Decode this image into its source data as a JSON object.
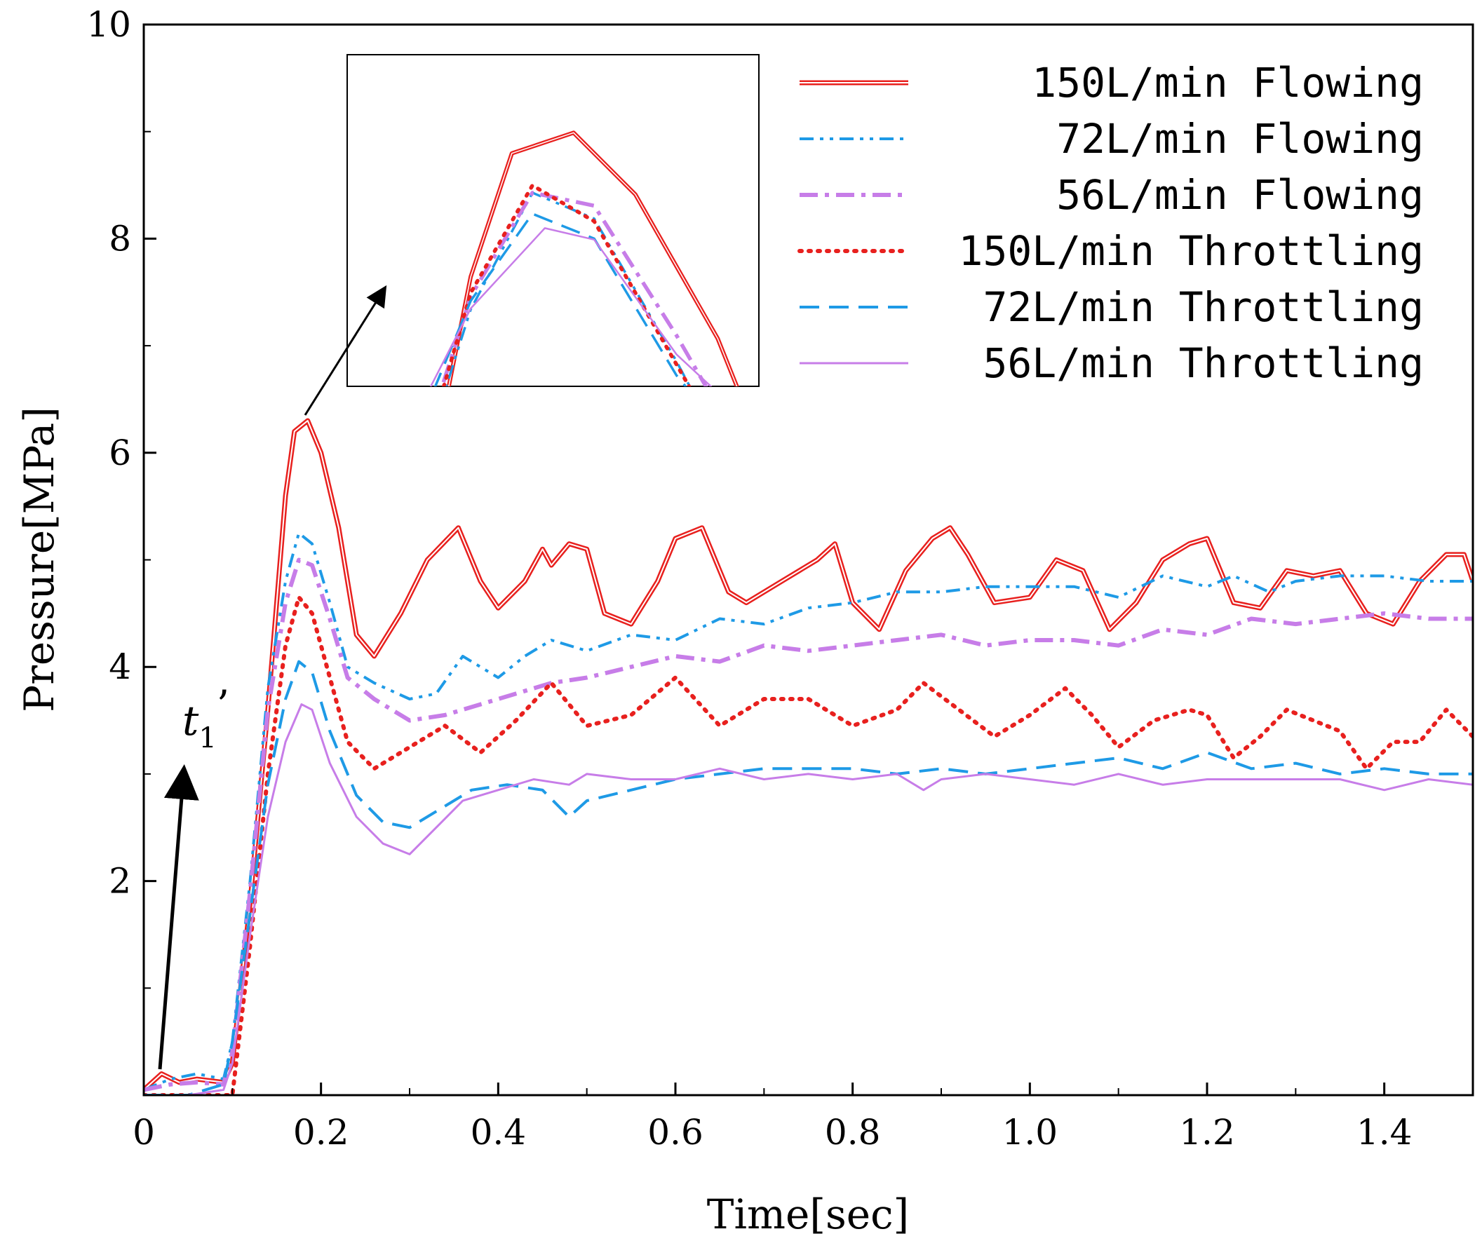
{
  "chart_data": {
    "type": "line",
    "title": "",
    "xlabel": "Time[sec]",
    "ylabel": "Pressure[MPa]",
    "xlim": [
      0,
      1.5
    ],
    "ylim": [
      0,
      10
    ],
    "x_ticks": [
      "0",
      "0.2",
      "0.4",
      "0.6",
      "0.8",
      "1.0",
      "1.2",
      "1.4"
    ],
    "x_tick_values": [
      0,
      0.2,
      0.4,
      0.6,
      0.8,
      1.0,
      1.2,
      1.4
    ],
    "y_ticks": [
      "2",
      "4",
      "6",
      "8",
      "10"
    ],
    "y_tick_values": [
      2,
      4,
      6,
      8,
      10
    ],
    "legend_position": "top-right",
    "annotation": {
      "text": "t",
      "subscript": "1",
      "prime": "’"
    },
    "inset": {
      "description": "zoom of peak region",
      "xlim": [
        0.13,
        0.23
      ],
      "ylim": [
        5.6,
        6.5
      ]
    },
    "series": [
      {
        "name": "150L/min Flowing",
        "color": "#e8201e",
        "style": "double",
        "points": [
          [
            0,
            0.05
          ],
          [
            0.02,
            0.2
          ],
          [
            0.04,
            0.12
          ],
          [
            0.06,
            0.15
          ],
          [
            0.09,
            0.12
          ],
          [
            0.1,
            0.3
          ],
          [
            0.12,
            1.8
          ],
          [
            0.14,
            3.6
          ],
          [
            0.16,
            5.6
          ],
          [
            0.17,
            6.2
          ],
          [
            0.185,
            6.3
          ],
          [
            0.2,
            6.0
          ],
          [
            0.22,
            5.3
          ],
          [
            0.24,
            4.3
          ],
          [
            0.26,
            4.1
          ],
          [
            0.29,
            4.5
          ],
          [
            0.32,
            5.0
          ],
          [
            0.355,
            5.3
          ],
          [
            0.38,
            4.8
          ],
          [
            0.4,
            4.55
          ],
          [
            0.43,
            4.8
          ],
          [
            0.45,
            5.1
          ],
          [
            0.46,
            4.95
          ],
          [
            0.48,
            5.15
          ],
          [
            0.5,
            5.1
          ],
          [
            0.52,
            4.5
          ],
          [
            0.55,
            4.4
          ],
          [
            0.58,
            4.8
          ],
          [
            0.6,
            5.2
          ],
          [
            0.63,
            5.3
          ],
          [
            0.66,
            4.7
          ],
          [
            0.68,
            4.6
          ],
          [
            0.72,
            4.8
          ],
          [
            0.76,
            5.0
          ],
          [
            0.78,
            5.15
          ],
          [
            0.8,
            4.6
          ],
          [
            0.83,
            4.35
          ],
          [
            0.86,
            4.9
          ],
          [
            0.89,
            5.2
          ],
          [
            0.91,
            5.3
          ],
          [
            0.93,
            5.05
          ],
          [
            0.96,
            4.6
          ],
          [
            1.0,
            4.65
          ],
          [
            1.03,
            5.0
          ],
          [
            1.06,
            4.9
          ],
          [
            1.09,
            4.35
          ],
          [
            1.12,
            4.6
          ],
          [
            1.15,
            5.0
          ],
          [
            1.18,
            5.15
          ],
          [
            1.2,
            5.2
          ],
          [
            1.23,
            4.6
          ],
          [
            1.26,
            4.55
          ],
          [
            1.29,
            4.9
          ],
          [
            1.32,
            4.85
          ],
          [
            1.35,
            4.9
          ],
          [
            1.38,
            4.5
          ],
          [
            1.41,
            4.4
          ],
          [
            1.44,
            4.8
          ],
          [
            1.47,
            5.05
          ],
          [
            1.49,
            5.05
          ],
          [
            1.5,
            4.8
          ]
        ]
      },
      {
        "name": "72L/min Flowing",
        "color": "#1e9ae6",
        "style": "dash-dot-dot",
        "points": [
          [
            0,
            0.05
          ],
          [
            0.03,
            0.15
          ],
          [
            0.06,
            0.2
          ],
          [
            0.09,
            0.15
          ],
          [
            0.1,
            0.5
          ],
          [
            0.12,
            2.0
          ],
          [
            0.14,
            3.8
          ],
          [
            0.16,
            4.8
          ],
          [
            0.175,
            5.25
          ],
          [
            0.19,
            5.15
          ],
          [
            0.21,
            4.6
          ],
          [
            0.23,
            4.0
          ],
          [
            0.26,
            3.85
          ],
          [
            0.3,
            3.7
          ],
          [
            0.33,
            3.75
          ],
          [
            0.36,
            4.1
          ],
          [
            0.4,
            3.9
          ],
          [
            0.43,
            4.1
          ],
          [
            0.46,
            4.25
          ],
          [
            0.5,
            4.15
          ],
          [
            0.55,
            4.3
          ],
          [
            0.6,
            4.25
          ],
          [
            0.65,
            4.45
          ],
          [
            0.7,
            4.4
          ],
          [
            0.75,
            4.55
          ],
          [
            0.8,
            4.6
          ],
          [
            0.85,
            4.7
          ],
          [
            0.9,
            4.7
          ],
          [
            0.95,
            4.75
          ],
          [
            1.0,
            4.75
          ],
          [
            1.05,
            4.75
          ],
          [
            1.1,
            4.65
          ],
          [
            1.15,
            4.85
          ],
          [
            1.2,
            4.75
          ],
          [
            1.23,
            4.85
          ],
          [
            1.27,
            4.7
          ],
          [
            1.3,
            4.8
          ],
          [
            1.35,
            4.85
          ],
          [
            1.4,
            4.85
          ],
          [
            1.45,
            4.8
          ],
          [
            1.5,
            4.8
          ]
        ]
      },
      {
        "name": "56L/min Flowing",
        "color": "#c77de8",
        "style": "dash-dot",
        "points": [
          [
            0,
            0.05
          ],
          [
            0.03,
            0.1
          ],
          [
            0.06,
            0.12
          ],
          [
            0.09,
            0.1
          ],
          [
            0.1,
            0.4
          ],
          [
            0.12,
            1.9
          ],
          [
            0.14,
            3.6
          ],
          [
            0.16,
            4.6
          ],
          [
            0.175,
            5.0
          ],
          [
            0.19,
            4.95
          ],
          [
            0.21,
            4.45
          ],
          [
            0.23,
            3.9
          ],
          [
            0.26,
            3.7
          ],
          [
            0.3,
            3.5
          ],
          [
            0.34,
            3.55
          ],
          [
            0.38,
            3.65
          ],
          [
            0.42,
            3.75
          ],
          [
            0.46,
            3.85
          ],
          [
            0.5,
            3.9
          ],
          [
            0.55,
            4.0
          ],
          [
            0.6,
            4.1
          ],
          [
            0.65,
            4.05
          ],
          [
            0.7,
            4.2
          ],
          [
            0.75,
            4.15
          ],
          [
            0.8,
            4.2
          ],
          [
            0.85,
            4.25
          ],
          [
            0.9,
            4.3
          ],
          [
            0.95,
            4.2
          ],
          [
            1.0,
            4.25
          ],
          [
            1.05,
            4.25
          ],
          [
            1.1,
            4.2
          ],
          [
            1.15,
            4.35
          ],
          [
            1.2,
            4.3
          ],
          [
            1.25,
            4.45
          ],
          [
            1.3,
            4.4
          ],
          [
            1.35,
            4.45
          ],
          [
            1.4,
            4.5
          ],
          [
            1.45,
            4.45
          ],
          [
            1.5,
            4.45
          ]
        ]
      },
      {
        "name": "150L/min Throttling",
        "color": "#e8201e",
        "style": "dotted",
        "points": [
          [
            0,
            0.0
          ],
          [
            0.08,
            0.0
          ],
          [
            0.1,
            0.0
          ],
          [
            0.12,
            1.4
          ],
          [
            0.14,
            3.0
          ],
          [
            0.16,
            4.2
          ],
          [
            0.175,
            4.65
          ],
          [
            0.19,
            4.5
          ],
          [
            0.21,
            3.9
          ],
          [
            0.23,
            3.3
          ],
          [
            0.26,
            3.05
          ],
          [
            0.3,
            3.25
          ],
          [
            0.34,
            3.45
          ],
          [
            0.38,
            3.2
          ],
          [
            0.42,
            3.5
          ],
          [
            0.46,
            3.85
          ],
          [
            0.5,
            3.45
          ],
          [
            0.55,
            3.55
          ],
          [
            0.6,
            3.9
          ],
          [
            0.65,
            3.45
          ],
          [
            0.7,
            3.7
          ],
          [
            0.75,
            3.7
          ],
          [
            0.8,
            3.45
          ],
          [
            0.85,
            3.6
          ],
          [
            0.88,
            3.85
          ],
          [
            0.92,
            3.6
          ],
          [
            0.96,
            3.35
          ],
          [
            1.0,
            3.55
          ],
          [
            1.04,
            3.8
          ],
          [
            1.07,
            3.55
          ],
          [
            1.1,
            3.25
          ],
          [
            1.14,
            3.5
          ],
          [
            1.18,
            3.6
          ],
          [
            1.2,
            3.55
          ],
          [
            1.23,
            3.15
          ],
          [
            1.26,
            3.35
          ],
          [
            1.29,
            3.6
          ],
          [
            1.32,
            3.5
          ],
          [
            1.35,
            3.4
          ],
          [
            1.38,
            3.05
          ],
          [
            1.41,
            3.3
          ],
          [
            1.44,
            3.3
          ],
          [
            1.47,
            3.6
          ],
          [
            1.5,
            3.35
          ]
        ]
      },
      {
        "name": "72L/min Throttling",
        "color": "#1e9ae6",
        "style": "dashed",
        "points": [
          [
            0,
            0.0
          ],
          [
            0.05,
            0.0
          ],
          [
            0.09,
            0.1
          ],
          [
            0.1,
            0.5
          ],
          [
            0.12,
            1.7
          ],
          [
            0.14,
            2.9
          ],
          [
            0.16,
            3.7
          ],
          [
            0.175,
            4.05
          ],
          [
            0.19,
            3.95
          ],
          [
            0.21,
            3.4
          ],
          [
            0.24,
            2.8
          ],
          [
            0.27,
            2.55
          ],
          [
            0.3,
            2.5
          ],
          [
            0.33,
            2.65
          ],
          [
            0.37,
            2.85
          ],
          [
            0.41,
            2.9
          ],
          [
            0.45,
            2.85
          ],
          [
            0.48,
            2.6
          ],
          [
            0.5,
            2.75
          ],
          [
            0.55,
            2.85
          ],
          [
            0.6,
            2.95
          ],
          [
            0.65,
            3.0
          ],
          [
            0.7,
            3.05
          ],
          [
            0.75,
            3.05
          ],
          [
            0.8,
            3.05
          ],
          [
            0.85,
            3.0
          ],
          [
            0.9,
            3.05
          ],
          [
            0.95,
            3.0
          ],
          [
            1.0,
            3.05
          ],
          [
            1.05,
            3.1
          ],
          [
            1.1,
            3.15
          ],
          [
            1.15,
            3.05
          ],
          [
            1.2,
            3.2
          ],
          [
            1.25,
            3.05
          ],
          [
            1.3,
            3.1
          ],
          [
            1.35,
            3.0
          ],
          [
            1.4,
            3.05
          ],
          [
            1.45,
            3.0
          ],
          [
            1.5,
            3.0
          ]
        ]
      },
      {
        "name": "56L/min Throttling",
        "color": "#c77de8",
        "style": "solid",
        "points": [
          [
            0,
            0.0
          ],
          [
            0.05,
            0.0
          ],
          [
            0.09,
            0.05
          ],
          [
            0.1,
            0.3
          ],
          [
            0.12,
            1.5
          ],
          [
            0.14,
            2.6
          ],
          [
            0.16,
            3.3
          ],
          [
            0.178,
            3.65
          ],
          [
            0.19,
            3.6
          ],
          [
            0.21,
            3.1
          ],
          [
            0.24,
            2.6
          ],
          [
            0.27,
            2.35
          ],
          [
            0.3,
            2.25
          ],
          [
            0.33,
            2.5
          ],
          [
            0.36,
            2.75
          ],
          [
            0.4,
            2.85
          ],
          [
            0.44,
            2.95
          ],
          [
            0.48,
            2.9
          ],
          [
            0.5,
            3.0
          ],
          [
            0.55,
            2.95
          ],
          [
            0.6,
            2.95
          ],
          [
            0.65,
            3.05
          ],
          [
            0.7,
            2.95
          ],
          [
            0.75,
            3.0
          ],
          [
            0.8,
            2.95
          ],
          [
            0.85,
            3.0
          ],
          [
            0.88,
            2.85
          ],
          [
            0.9,
            2.95
          ],
          [
            0.95,
            3.0
          ],
          [
            1.0,
            2.95
          ],
          [
            1.05,
            2.9
          ],
          [
            1.1,
            3.0
          ],
          [
            1.15,
            2.9
          ],
          [
            1.2,
            2.95
          ],
          [
            1.25,
            2.95
          ],
          [
            1.3,
            2.95
          ],
          [
            1.35,
            2.95
          ],
          [
            1.4,
            2.85
          ],
          [
            1.45,
            2.95
          ],
          [
            1.5,
            2.9
          ]
        ]
      }
    ]
  }
}
